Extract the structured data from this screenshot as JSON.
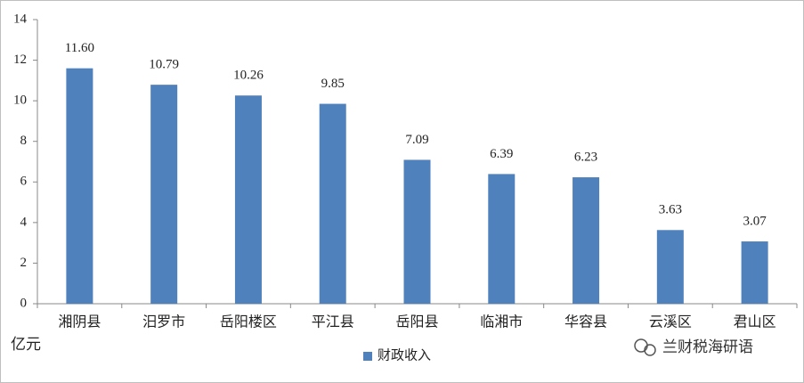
{
  "chart_data": {
    "type": "bar",
    "categories": [
      "湘阴县",
      "汨罗市",
      "岳阳楼区",
      "平江县",
      "岳阳县",
      "临湘市",
      "华容县",
      "云溪区",
      "君山区"
    ],
    "series": [
      {
        "name": "财政收入",
        "color": "#4f81bd",
        "values": [
          11.6,
          10.79,
          10.26,
          9.85,
          7.09,
          6.39,
          6.23,
          3.63,
          3.07
        ],
        "value_labels": [
          "11.60",
          "10.79",
          "10.26",
          "9.85",
          "7.09",
          "6.39",
          "6.23",
          "3.63",
          "3.07"
        ]
      }
    ],
    "y_label": "亿元",
    "ylim": [
      0,
      14
    ],
    "yticks": [
      0,
      2,
      4,
      6,
      8,
      10,
      12,
      14
    ],
    "grid": false,
    "legend": "bottom",
    "watermark": "兰财税海研语"
  }
}
